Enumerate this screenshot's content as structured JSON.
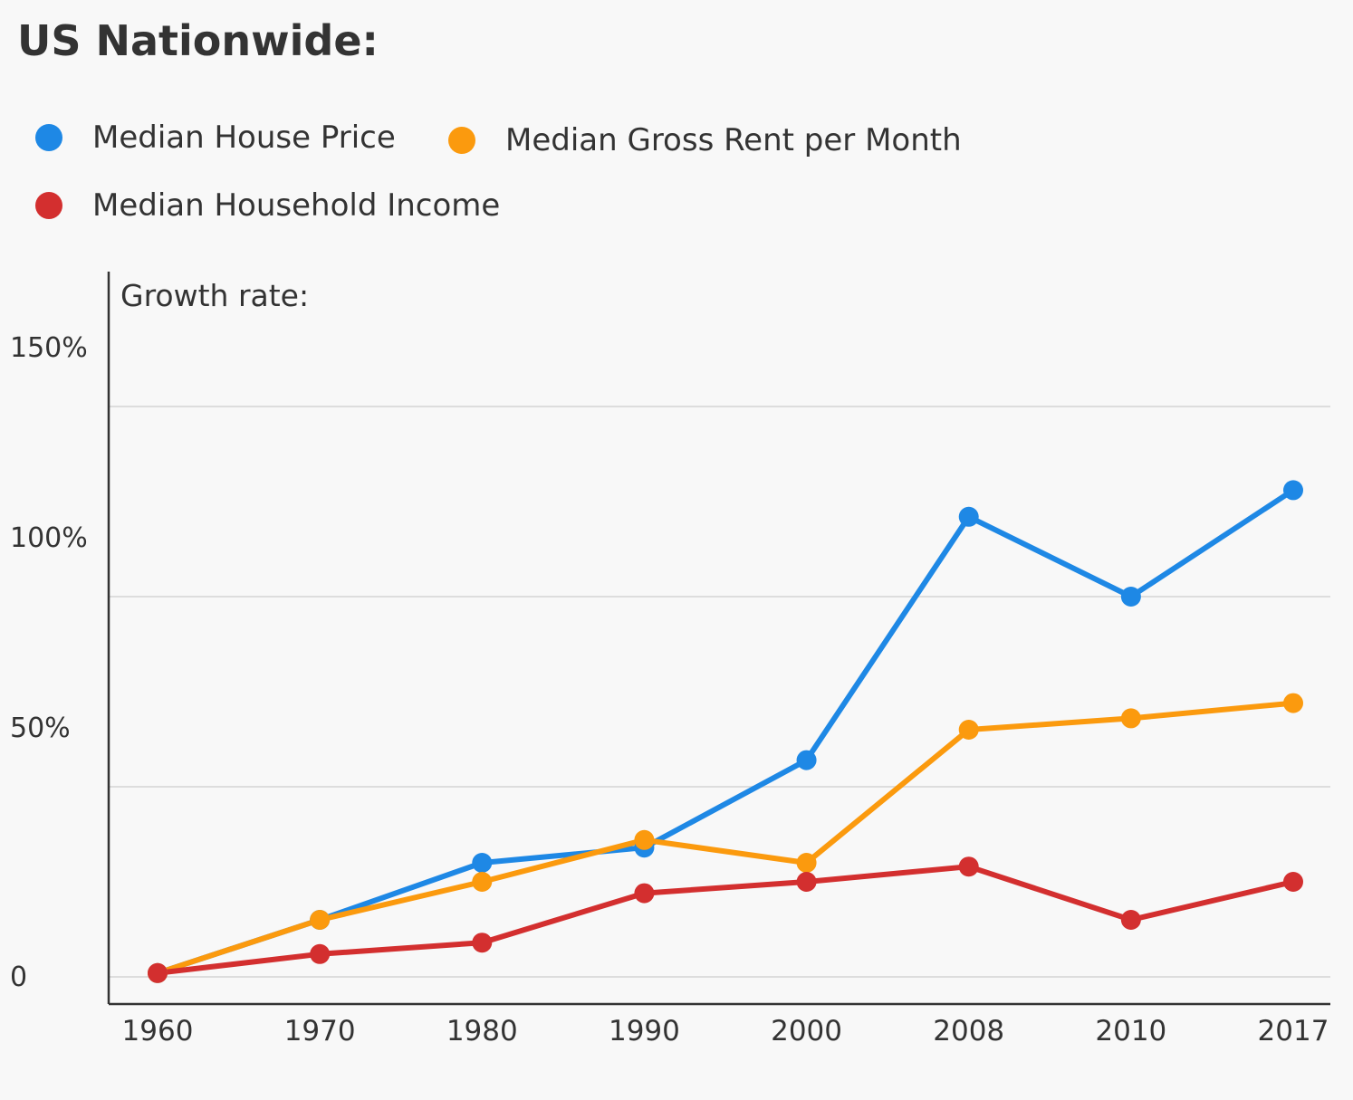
{
  "chart_data": {
    "type": "line",
    "title": "US Nationwide:",
    "ylabel": "Growth rate:",
    "xlabel": "",
    "categories": [
      "1960",
      "1970",
      "1980",
      "1990",
      "2000",
      "2008",
      "2010",
      "2017"
    ],
    "ylim": [
      -7,
      180
    ],
    "yticks": [
      {
        "value": 0,
        "label": "0"
      },
      {
        "value": 50,
        "label": "50%"
      },
      {
        "value": 100,
        "label": "100%"
      },
      {
        "value": 150,
        "label": "150%"
      }
    ],
    "grid": true,
    "legend_position": "top-left",
    "series": [
      {
        "name": "Median House Price",
        "color": "#1e88e5",
        "values": [
          1,
          15,
          30,
          34,
          57,
          121,
          100,
          128
        ]
      },
      {
        "name": "Median Gross Rent per Month",
        "color": "#fb9a0e",
        "values": [
          1,
          15,
          25,
          36,
          30,
          65,
          68,
          72
        ]
      },
      {
        "name": "Median Household Income",
        "color": "#d32f2f",
        "values": [
          1,
          6,
          9,
          22,
          25,
          29,
          15,
          25
        ]
      }
    ]
  }
}
